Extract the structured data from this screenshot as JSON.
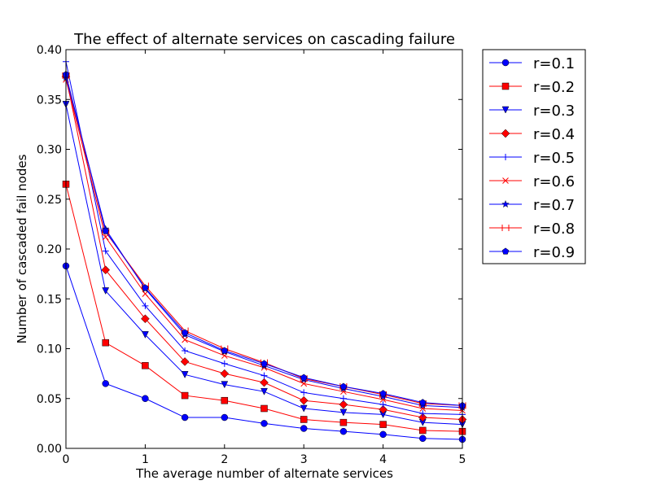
{
  "chart_data": {
    "type": "line",
    "title": "The effect of alternate services on cascading failure",
    "xlabel": "The average number of alternate services",
    "ylabel": "Number of cascaded fail nodes",
    "xlim": [
      0,
      5
    ],
    "ylim": [
      0,
      0.4
    ],
    "xticks": [
      "0",
      "1",
      "2",
      "3",
      "4",
      "5"
    ],
    "yticks": [
      "0.00",
      "0.05",
      "0.10",
      "0.15",
      "0.20",
      "0.25",
      "0.30",
      "0.35",
      "0.40"
    ],
    "grid": false,
    "legend_position": "outside-right",
    "x": [
      0,
      0.5,
      1,
      1.5,
      2,
      2.5,
      3,
      3.5,
      4,
      4.5,
      5
    ],
    "series": [
      {
        "name": "r=0.1",
        "color": "#0000ff",
        "marker": "circle",
        "values": [
          0.183,
          0.065,
          0.05,
          0.031,
          0.031,
          0.025,
          0.02,
          0.017,
          0.014,
          0.01,
          0.009
        ]
      },
      {
        "name": "r=0.2",
        "color": "#ff0000",
        "marker": "square",
        "values": [
          0.265,
          0.106,
          0.083,
          0.053,
          0.048,
          0.04,
          0.029,
          0.026,
          0.024,
          0.018,
          0.017
        ]
      },
      {
        "name": "r=0.3",
        "color": "#0000ff",
        "marker": "triangle-down",
        "values": [
          0.345,
          0.158,
          0.114,
          0.074,
          0.064,
          0.057,
          0.04,
          0.036,
          0.034,
          0.026,
          0.024
        ]
      },
      {
        "name": "r=0.4",
        "color": "#ff0000",
        "marker": "diamond",
        "values": [
          0.373,
          0.179,
          0.13,
          0.087,
          0.075,
          0.066,
          0.048,
          0.044,
          0.039,
          0.031,
          0.029
        ]
      },
      {
        "name": "r=0.5",
        "color": "#0000ff",
        "marker": "plus",
        "values": [
          0.388,
          0.198,
          0.143,
          0.098,
          0.085,
          0.073,
          0.056,
          0.05,
          0.044,
          0.035,
          0.034
        ]
      },
      {
        "name": "r=0.6",
        "color": "#ff0000",
        "marker": "x",
        "values": [
          0.37,
          0.212,
          0.155,
          0.109,
          0.093,
          0.081,
          0.065,
          0.057,
          0.049,
          0.04,
          0.038
        ]
      },
      {
        "name": "r=0.7",
        "color": "#0000ff",
        "marker": "star",
        "values": [
          0.372,
          0.22,
          0.16,
          0.114,
          0.097,
          0.083,
          0.069,
          0.06,
          0.052,
          0.043,
          0.041
        ]
      },
      {
        "name": "r=0.8",
        "color": "#ff0000",
        "marker": "hline",
        "values": [
          0.374,
          0.217,
          0.163,
          0.118,
          0.1,
          0.086,
          0.07,
          0.062,
          0.054,
          0.045,
          0.043
        ]
      },
      {
        "name": "r=0.9",
        "color": "#0000ff",
        "marker": "pentagon",
        "values": [
          0.375,
          0.218,
          0.161,
          0.116,
          0.098,
          0.085,
          0.071,
          0.062,
          0.055,
          0.046,
          0.043
        ]
      }
    ]
  }
}
